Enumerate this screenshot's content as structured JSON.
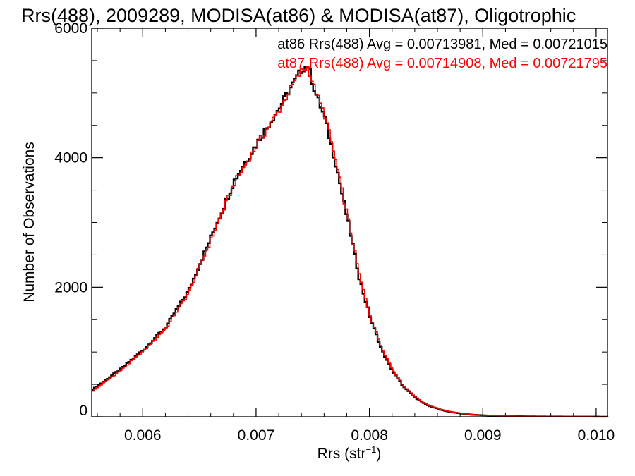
{
  "chart_data": {
    "type": "line",
    "step": true,
    "title": "Rrs(488), 2009289, MODISA(at86) & MODISA(at87), Oligotrophic",
    "xlabel": "Rrs (str",
    "xlabel_sup": "−1",
    "xlabel_close": ")",
    "ylabel": "Number of Observations",
    "xlim": [
      0.00555,
      0.0101
    ],
    "ylim": [
      0,
      6000
    ],
    "xticks": [
      0.006,
      0.007,
      0.008,
      0.009,
      0.01
    ],
    "xtick_labels": [
      "0.006",
      "0.007",
      "0.008",
      "0.009",
      "0.010"
    ],
    "yticks": [
      0,
      2000,
      4000,
      6000
    ],
    "ytick_labels": [
      "0",
      "2000",
      "4000",
      "6000"
    ],
    "grid": false,
    "legend_position": "top-right",
    "series": [
      {
        "name": "at86",
        "color": "#000000",
        "legend_text": "at86 Rrs(488) Avg = 0.00713981, Med = 0.00721015",
        "x": [
          0.00555,
          0.0058,
          0.006,
          0.0062,
          0.0064,
          0.0066,
          0.0068,
          0.007,
          0.0072,
          0.0073,
          0.0074,
          0.00745,
          0.0075,
          0.0076,
          0.0077,
          0.0078,
          0.0079,
          0.008,
          0.0081,
          0.0082,
          0.0083,
          0.0084,
          0.0085,
          0.0086,
          0.0087,
          0.0088,
          0.0089,
          0.009,
          0.0092,
          0.0094,
          0.0096,
          0.0098,
          0.0101
        ],
        "y": [
          420,
          740,
          1040,
          1400,
          1960,
          2800,
          3650,
          4230,
          4780,
          5100,
          5380,
          5420,
          5080,
          4600,
          3860,
          3030,
          2160,
          1520,
          1030,
          690,
          450,
          290,
          180,
          120,
          75,
          50,
          32,
          22,
          12,
          6,
          3,
          2,
          1
        ]
      },
      {
        "name": "at87",
        "color": "#ff0000",
        "legend_text": "at87 Rrs(488) Avg = 0.00714908, Med = 0.00721795",
        "x": [
          0.00555,
          0.0058,
          0.006,
          0.0062,
          0.0064,
          0.0066,
          0.0068,
          0.007,
          0.0072,
          0.0073,
          0.0074,
          0.00745,
          0.0075,
          0.0076,
          0.0077,
          0.0078,
          0.0079,
          0.008,
          0.0081,
          0.0082,
          0.0083,
          0.0084,
          0.0085,
          0.0086,
          0.0087,
          0.0088,
          0.0089,
          0.009,
          0.0092,
          0.0094,
          0.0096,
          0.0098,
          0.0101
        ],
        "y": [
          400,
          720,
          1020,
          1380,
          1930,
          2760,
          3610,
          4200,
          4750,
          5080,
          5360,
          5400,
          5100,
          4640,
          3900,
          3070,
          2200,
          1550,
          1060,
          710,
          460,
          300,
          185,
          125,
          78,
          52,
          34,
          23,
          13,
          6,
          3,
          2,
          1
        ]
      }
    ]
  }
}
